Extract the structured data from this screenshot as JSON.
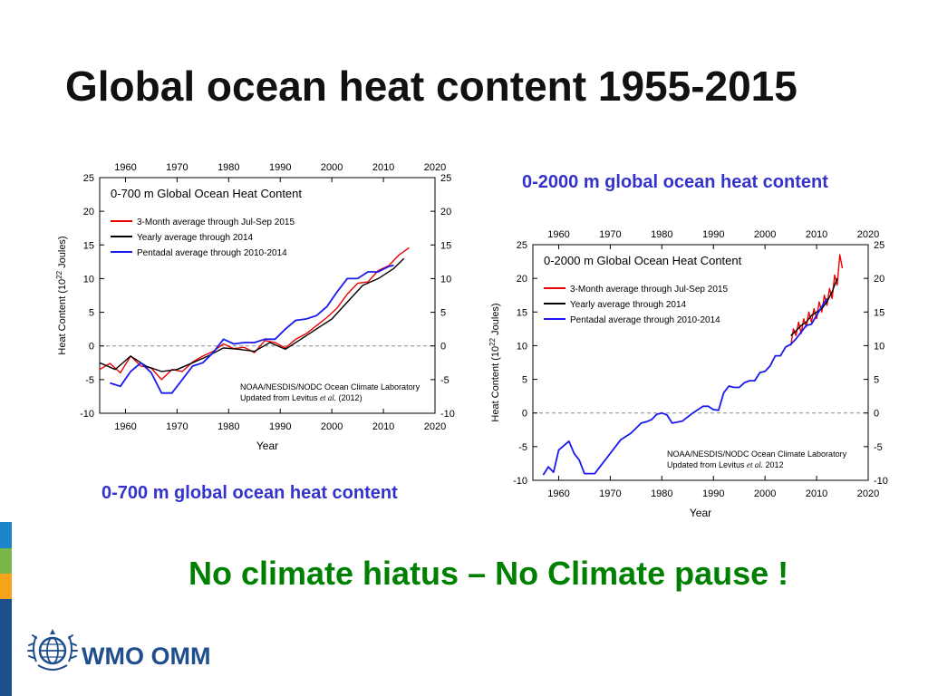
{
  "title": "Global ocean heat content 1955-2015",
  "tagline": "No climate hiatus – No Climate pause !",
  "logo": {
    "text": "WMO OMM",
    "icon": "un-wreath-globe-icon"
  },
  "captions": {
    "left": "0-700 m global ocean heat content",
    "right": "0-2000 m global ocean heat content"
  },
  "colors": {
    "series_3month": "#ee0000",
    "series_yearly": "#000000",
    "series_pentadal": "#1a1aee",
    "caption": "#3333cc",
    "tagline": "#008000",
    "bar_blue": "#1a86c9",
    "bar_green": "#7ab648",
    "bar_orange": "#f4a31b",
    "bar_navy": "#1f4e8c"
  },
  "chart_data": [
    {
      "type": "line",
      "title": "0-700 m Global Ocean Heat Content",
      "xlabel": "Year",
      "ylabel": "Heat Content (10",
      "ylabel_sup": "22",
      "ylabel_tail": " Joules)",
      "xlim": [
        1955,
        2020
      ],
      "ylim": [
        -10,
        25
      ],
      "xticks": [
        "1960",
        "1970",
        "1980",
        "1990",
        "2000",
        "2010",
        "2020"
      ],
      "yticks": [
        "25",
        "20",
        "15",
        "10",
        "5",
        "0",
        "-5",
        "-10"
      ],
      "legend": [
        "3-Month average through Jul-Sep 2015",
        "Yearly average through 2014",
        "Pentadal average through 2010-2014"
      ],
      "legend_position": "top-left",
      "credit_line1": "NOAA/NESDIS/NODC Ocean Climate Laboratory",
      "credit_line2": "Updated from Levitus ",
      "credit_etal": "et al.",
      "credit_year": " (2012)",
      "zero_line": "dashed",
      "series": [
        {
          "name": "3-Month average through Jul-Sep 2015",
          "x": [
            1955,
            1957,
            1959,
            1961,
            1963,
            1965,
            1967,
            1969,
            1971,
            1973,
            1975,
            1977,
            1979,
            1981,
            1983,
            1985,
            1987,
            1989,
            1991,
            1993,
            1995,
            1997,
            1999,
            2001,
            2003,
            2005,
            2007,
            2009,
            2011,
            2013,
            2015
          ],
          "y": [
            -3.5,
            -2.6,
            -4.0,
            -1.5,
            -3.0,
            -3.3,
            -5.0,
            -3.5,
            -3.8,
            -2.4,
            -1.5,
            -0.8,
            0.3,
            -0.4,
            -0.2,
            -1.0,
            0.8,
            0.5,
            -0.3,
            1.0,
            1.8,
            3.0,
            4.2,
            5.6,
            7.7,
            9.3,
            9.5,
            11.2,
            11.9,
            13.5,
            14.6
          ]
        },
        {
          "name": "Yearly average through 2014",
          "x": [
            1955,
            1958,
            1961,
            1964,
            1967,
            1970,
            1973,
            1976,
            1979,
            1982,
            1985,
            1988,
            1991,
            1994,
            1997,
            2000,
            2003,
            2006,
            2009,
            2012,
            2014
          ],
          "y": [
            -2.5,
            -3.5,
            -1.5,
            -3.0,
            -3.8,
            -3.5,
            -2.5,
            -1.5,
            -0.3,
            -0.5,
            -0.8,
            0.5,
            -0.5,
            1.0,
            2.5,
            4.0,
            6.5,
            9.0,
            10.0,
            11.5,
            13.0
          ]
        },
        {
          "name": "Pentadal average through 2010-2014",
          "x": [
            1957,
            1959,
            1961,
            1963,
            1965,
            1967,
            1969,
            1971,
            1973,
            1975,
            1977,
            1979,
            1981,
            1983,
            1985,
            1987,
            1989,
            1991,
            1993,
            1995,
            1997,
            1999,
            2001,
            2003,
            2005,
            2007,
            2009,
            2011,
            2012
          ],
          "y": [
            -5.5,
            -6.0,
            -3.8,
            -2.5,
            -4.0,
            -7.0,
            -7.0,
            -5.0,
            -3.0,
            -2.5,
            -1.0,
            1.0,
            0.3,
            0.5,
            0.5,
            1.0,
            1.0,
            2.5,
            3.8,
            4.0,
            4.5,
            5.8,
            8.0,
            10.0,
            10.0,
            11.0,
            11.0,
            11.8,
            12.0
          ]
        }
      ]
    },
    {
      "type": "line",
      "title": "0-2000 m Global Ocean Heat Content",
      "xlabel": "Year",
      "ylabel": "Heat Content (10",
      "ylabel_sup": "22",
      "ylabel_tail": " Joules)",
      "xlim": [
        1955,
        2020
      ],
      "ylim": [
        -10,
        25
      ],
      "xticks": [
        "1960",
        "1970",
        "1980",
        "1990",
        "2000",
        "2010",
        "2020"
      ],
      "yticks": [
        "25",
        "20",
        "15",
        "10",
        "5",
        "0",
        "-5",
        "-10"
      ],
      "legend": [
        "3-Month average through Jul-Sep 2015",
        "Yearly average through 2014",
        "Pentadal average through 2010-2014"
      ],
      "legend_position": "top-left",
      "credit_line1": "NOAA/NESDIS/NODC Ocean Climate Laboratory",
      "credit_line2": "Updated from Levitus ",
      "credit_etal": "et al.",
      "credit_year": " 2012",
      "zero_line": "dashed",
      "series": [
        {
          "name": "3-Month average through Jul-Sep 2015",
          "x": [
            2005,
            2005.5,
            2006,
            2006.5,
            2007,
            2007.5,
            2008,
            2008.5,
            2009,
            2009.5,
            2010,
            2010.5,
            2011,
            2011.5,
            2012,
            2012.5,
            2013,
            2013.5,
            2014,
            2014.5,
            2015
          ],
          "y": [
            10.0,
            12.5,
            11.5,
            13.5,
            11.8,
            14.0,
            12.8,
            15.0,
            13.5,
            15.5,
            14.0,
            16.5,
            15.0,
            17.5,
            16.0,
            18.5,
            17.0,
            20.5,
            19.0,
            23.5,
            21.5
          ]
        },
        {
          "name": "Yearly average through 2014",
          "x": [
            2005,
            2006,
            2007,
            2008,
            2009,
            2010,
            2011,
            2012,
            2013,
            2014
          ],
          "y": [
            11.5,
            12.2,
            13.0,
            13.5,
            14.5,
            15.0,
            15.5,
            16.5,
            18.0,
            20.0
          ]
        },
        {
          "name": "Pentadal average through 2010-2014",
          "x": [
            1957,
            1958,
            1959,
            1960,
            1962,
            1963,
            1964,
            1965,
            1966,
            1967,
            1968,
            1970,
            1972,
            1974,
            1976,
            1977,
            1978,
            1979,
            1980,
            1981,
            1982,
            1984,
            1986,
            1988,
            1989,
            1990,
            1991,
            1992,
            1993,
            1994,
            1995,
            1996,
            1997,
            1998,
            1999,
            2000,
            2001,
            2002,
            2003,
            2004,
            2005,
            2006,
            2007,
            2008,
            2009,
            2010,
            2011,
            2012
          ],
          "y": [
            -9.2,
            -8.0,
            -8.8,
            -5.5,
            -4.2,
            -6.0,
            -7.0,
            -9.0,
            -9.0,
            -9.0,
            -8.0,
            -6.0,
            -4.0,
            -3.0,
            -1.5,
            -1.3,
            -1.0,
            -0.2,
            0.0,
            -0.3,
            -1.5,
            -1.2,
            0.0,
            1.0,
            1.0,
            0.5,
            0.4,
            3.0,
            4.0,
            3.8,
            3.8,
            4.5,
            4.8,
            4.8,
            6.0,
            6.2,
            7.0,
            8.5,
            8.5,
            9.8,
            10.2,
            11.0,
            12.0,
            13.0,
            13.2,
            14.5,
            15.8,
            17.0
          ]
        }
      ]
    }
  ]
}
